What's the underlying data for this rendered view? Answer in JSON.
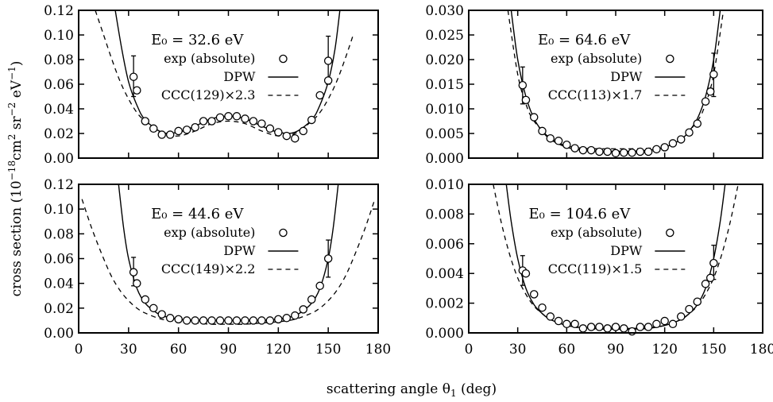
{
  "figure": {
    "ylabel_text": "cross section (10",
    "ylabel_exp1": "−18",
    "ylabel_mid": "cm",
    "ylabel_exp2": "2",
    "ylabel_mid2": " sr",
    "ylabel_exp3": "−2",
    "ylabel_mid3": " eV",
    "ylabel_exp4": "−1",
    "ylabel_end": ")",
    "xlabel_text": "scattering angle θ",
    "xlabel_sub": "1",
    "xlabel_end": " (deg)"
  },
  "chart_data": [
    {
      "type": "scatter",
      "energy_label": "E₀ = 32.6 eV",
      "xlim": [
        0,
        180
      ],
      "ylim": [
        0,
        0.12
      ],
      "xticks": [
        0,
        30,
        60,
        90,
        120,
        150,
        180
      ],
      "yticks": [
        "0.00",
        "0.02",
        "0.04",
        "0.06",
        "0.08",
        "0.10",
        "0.12"
      ],
      "xticks_labeled": false,
      "legend": {
        "exp": "exp (absolute)",
        "dpw": "DPW",
        "ccc": "CCC(129)×2.3"
      },
      "experiment": {
        "x": [
          33,
          35,
          40,
          45,
          50,
          55,
          60,
          65,
          70,
          75,
          80,
          85,
          90,
          95,
          100,
          105,
          110,
          115,
          120,
          125,
          130,
          135,
          140,
          145,
          150
        ],
        "y": [
          0.066,
          0.055,
          0.03,
          0.024,
          0.019,
          0.019,
          0.022,
          0.023,
          0.025,
          0.03,
          0.03,
          0.033,
          0.034,
          0.034,
          0.032,
          0.03,
          0.028,
          0.024,
          0.021,
          0.018,
          0.016,
          0.022,
          0.031,
          0.051,
          0.063
        ],
        "errbars": [
          {
            "x": 33,
            "lo": 0.05,
            "hi": 0.083
          },
          {
            "x": 150,
            "lo": 0.06,
            "hi": 0.099
          }
        ],
        "extra_point": {
          "x": 150,
          "y": 0.079
        }
      },
      "dpw": {
        "x": [
          22,
          26,
          30,
          35,
          40,
          50,
          60,
          70,
          80,
          90,
          100,
          110,
          120,
          130,
          140,
          145,
          150,
          154,
          157
        ],
        "y": [
          0.12,
          0.088,
          0.062,
          0.043,
          0.031,
          0.021,
          0.021,
          0.026,
          0.032,
          0.034,
          0.032,
          0.026,
          0.021,
          0.021,
          0.031,
          0.043,
          0.062,
          0.088,
          0.12
        ]
      },
      "ccc": {
        "x": [
          10,
          15,
          20,
          25,
          30,
          35,
          40,
          50,
          60,
          70,
          80,
          90,
          100,
          110,
          120,
          130,
          140,
          145,
          150,
          155,
          160,
          165
        ],
        "y": [
          0.12,
          0.1,
          0.08,
          0.062,
          0.048,
          0.037,
          0.03,
          0.02,
          0.018,
          0.022,
          0.028,
          0.03,
          0.028,
          0.022,
          0.018,
          0.02,
          0.03,
          0.037,
          0.048,
          0.062,
          0.08,
          0.1
        ]
      }
    },
    {
      "type": "scatter",
      "energy_label": "E₀ = 64.6 eV",
      "xlim": [
        0,
        180
      ],
      "ylim": [
        0,
        0.03
      ],
      "xticks": [
        0,
        30,
        60,
        90,
        120,
        150,
        180
      ],
      "yticks": [
        "0.000",
        "0.005",
        "0.010",
        "0.015",
        "0.020",
        "0.025",
        "0.030"
      ],
      "xticks_labeled": false,
      "legend": {
        "exp": "exp (absolute)",
        "dpw": "DPW",
        "ccc": "CCC(113)×1.7"
      },
      "experiment": {
        "x": [
          33,
          35,
          40,
          45,
          50,
          55,
          60,
          65,
          70,
          75,
          80,
          85,
          90,
          95,
          100,
          105,
          110,
          115,
          120,
          125,
          130,
          135,
          140,
          145,
          148,
          150
        ],
        "y": [
          0.0148,
          0.0118,
          0.0083,
          0.0055,
          0.004,
          0.0035,
          0.0027,
          0.002,
          0.0016,
          0.0016,
          0.0013,
          0.0013,
          0.001,
          0.0011,
          0.0011,
          0.0013,
          0.0013,
          0.0018,
          0.0022,
          0.003,
          0.0038,
          0.0052,
          0.007,
          0.0115,
          0.0135,
          0.017
        ],
        "errbars": [
          {
            "x": 33,
            "lo": 0.011,
            "hi": 0.0185
          },
          {
            "x": 150,
            "lo": 0.0125,
            "hi": 0.0213
          }
        ],
        "extra_point": null
      },
      "dpw": {
        "x": [
          26,
          30,
          35,
          40,
          45,
          50,
          60,
          70,
          80,
          90,
          100,
          110,
          120,
          130,
          135,
          140,
          145,
          150,
          154
        ],
        "y": [
          0.03,
          0.02,
          0.0125,
          0.008,
          0.0055,
          0.0038,
          0.0022,
          0.0016,
          0.0014,
          0.0014,
          0.0014,
          0.0016,
          0.0022,
          0.0038,
          0.0055,
          0.008,
          0.0125,
          0.02,
          0.03
        ]
      },
      "ccc": {
        "x": [
          24,
          30,
          35,
          40,
          50,
          60,
          70,
          80,
          90,
          100,
          110,
          120,
          130,
          140,
          145,
          150,
          156
        ],
        "y": [
          0.03,
          0.017,
          0.011,
          0.0075,
          0.004,
          0.0025,
          0.002,
          0.0019,
          0.0019,
          0.0019,
          0.002,
          0.0025,
          0.004,
          0.0075,
          0.011,
          0.017,
          0.03
        ]
      }
    },
    {
      "type": "scatter",
      "energy_label": "E₀ = 44.6 eV",
      "xlim": [
        0,
        180
      ],
      "ylim": [
        0,
        0.12
      ],
      "xticks": [
        0,
        30,
        60,
        90,
        120,
        150,
        180
      ],
      "yticks": [
        "0.00",
        "0.02",
        "0.04",
        "0.06",
        "0.08",
        "0.10",
        "0.12"
      ],
      "xticks_labeled": true,
      "legend": {
        "exp": "exp (absolute)",
        "dpw": "DPW",
        "ccc": "CCC(149)×2.2"
      },
      "experiment": {
        "x": [
          33,
          35,
          40,
          45,
          50,
          55,
          60,
          65,
          70,
          75,
          80,
          85,
          90,
          95,
          100,
          105,
          110,
          115,
          120,
          125,
          130,
          135,
          140,
          145,
          150
        ],
        "y": [
          0.049,
          0.04,
          0.027,
          0.02,
          0.015,
          0.012,
          0.011,
          0.01,
          0.01,
          0.01,
          0.01,
          0.01,
          0.01,
          0.01,
          0.01,
          0.01,
          0.01,
          0.01,
          0.011,
          0.012,
          0.014,
          0.019,
          0.027,
          0.038,
          0.06
        ],
        "errbars": [
          {
            "x": 33,
            "lo": 0.038,
            "hi": 0.061
          },
          {
            "x": 150,
            "lo": 0.045,
            "hi": 0.075
          }
        ],
        "extra_point": null
      },
      "dpw": {
        "x": [
          24,
          27,
          30,
          35,
          40,
          45,
          50,
          60,
          70,
          80,
          90,
          100,
          110,
          120,
          130,
          135,
          140,
          145,
          150,
          153,
          156
        ],
        "y": [
          0.12,
          0.085,
          0.06,
          0.036,
          0.024,
          0.018,
          0.014,
          0.011,
          0.01,
          0.01,
          0.01,
          0.01,
          0.01,
          0.011,
          0.014,
          0.018,
          0.024,
          0.036,
          0.06,
          0.085,
          0.12
        ]
      },
      "ccc": {
        "x": [
          2,
          8,
          15,
          20,
          25,
          30,
          35,
          40,
          50,
          60,
          70,
          80,
          90,
          100,
          110,
          120,
          130,
          140,
          145,
          150,
          155,
          160,
          165,
          172,
          178
        ],
        "y": [
          0.108,
          0.084,
          0.06,
          0.045,
          0.034,
          0.026,
          0.02,
          0.016,
          0.011,
          0.009,
          0.008,
          0.007,
          0.007,
          0.007,
          0.008,
          0.009,
          0.011,
          0.016,
          0.02,
          0.026,
          0.034,
          0.045,
          0.06,
          0.084,
          0.108
        ]
      }
    },
    {
      "type": "scatter",
      "energy_label": "E₀ = 104.6 eV",
      "xlim": [
        0,
        180
      ],
      "ylim": [
        0,
        0.01
      ],
      "xticks": [
        0,
        30,
        60,
        90,
        120,
        150,
        180
      ],
      "yticks": [
        "0.000",
        "0.002",
        "0.004",
        "0.006",
        "0.008",
        "0.010"
      ],
      "xticks_labeled": true,
      "legend": {
        "exp": "exp (absolute)",
        "dpw": "DPW",
        "ccc": "CCC(119)×1.5"
      },
      "experiment": {
        "x": [
          33,
          35,
          40,
          45,
          50,
          55,
          60,
          65,
          70,
          75,
          80,
          85,
          90,
          95,
          100,
          105,
          110,
          115,
          120,
          125,
          130,
          135,
          140,
          145,
          148,
          150
        ],
        "y": [
          0.0042,
          0.004,
          0.0026,
          0.0017,
          0.0011,
          0.0008,
          0.0006,
          0.0006,
          0.0003,
          0.0004,
          0.0004,
          0.0003,
          0.0004,
          0.0003,
          0.0001,
          0.0004,
          0.0004,
          0.0006,
          0.0008,
          0.0006,
          0.0011,
          0.0016,
          0.0021,
          0.0033,
          0.0037,
          0.0047
        ],
        "errbars": [
          {
            "x": 33,
            "lo": 0.0032,
            "hi": 0.0052
          },
          {
            "x": 150,
            "lo": 0.0036,
            "hi": 0.0059
          }
        ],
        "extra_point": null
      },
      "dpw": {
        "x": [
          23,
          26,
          30,
          35,
          40,
          45,
          50,
          60,
          70,
          80,
          90,
          100,
          110,
          120,
          130,
          135,
          140,
          145,
          150,
          154,
          157
        ],
        "y": [
          0.01,
          0.0075,
          0.005,
          0.003,
          0.0019,
          0.0013,
          0.0009,
          0.0005,
          0.00035,
          0.0003,
          0.0003,
          0.0003,
          0.00035,
          0.0005,
          0.0009,
          0.0013,
          0.0019,
          0.003,
          0.005,
          0.0075,
          0.01
        ]
      },
      "ccc": {
        "x": [
          15,
          20,
          25,
          30,
          35,
          40,
          45,
          50,
          60,
          70,
          80,
          90,
          100,
          110,
          120,
          130,
          135,
          140,
          145,
          150,
          155,
          160,
          165
        ],
        "y": [
          0.01,
          0.0074,
          0.0053,
          0.0037,
          0.0026,
          0.0018,
          0.0013,
          0.0009,
          0.0005,
          0.0003,
          0.00025,
          0.00025,
          0.00025,
          0.0003,
          0.0005,
          0.0009,
          0.0013,
          0.0018,
          0.0026,
          0.0037,
          0.0053,
          0.0074,
          0.01
        ]
      }
    }
  ]
}
